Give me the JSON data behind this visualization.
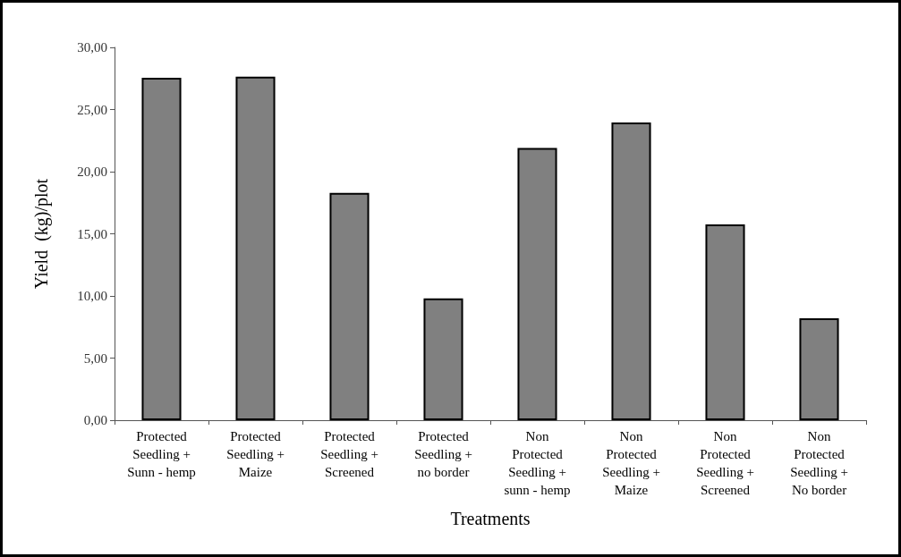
{
  "chart_data": {
    "type": "bar",
    "xlabel": "Treatments",
    "ylabel": "Yield  (kg)/plot",
    "categories": [
      "Protected\nSeedling +\nSunn - hemp",
      "Protected\nSeedling +\nMaize",
      "Protected\nSeedling +\nScreened",
      "Protected\nSeedling +\nno border",
      "Non\nProtected\nSeedling +\nsunn - hemp",
      "Non\nProtected\nSeedling +\nMaize",
      "Non\nProtected\nSeedling +\nScreened",
      "Non\nProtected\nSeedling +\nNo border"
    ],
    "values": [
      27.55,
      27.65,
      18.3,
      9.8,
      21.9,
      23.95,
      15.75,
      8.2
    ],
    "color": "#808080",
    "ylim": [
      0,
      30
    ],
    "yticks": [
      {
        "value": 0,
        "label": "0,00"
      },
      {
        "value": 5,
        "label": "5,00"
      },
      {
        "value": 10,
        "label": "10,00"
      },
      {
        "value": 15,
        "label": "15,00"
      },
      {
        "value": 20,
        "label": "20,00"
      },
      {
        "value": 25,
        "label": "25,00"
      },
      {
        "value": 30,
        "label": "30,00"
      }
    ],
    "grid": false
  }
}
